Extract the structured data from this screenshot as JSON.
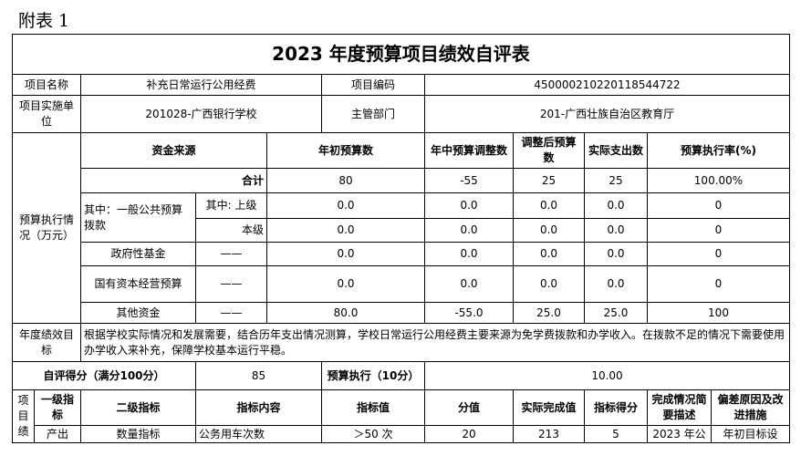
{
  "attachment_label": "附表 1",
  "title": "2023 年度预算项目绩效自评表",
  "info": {
    "name_label": "项目名称",
    "name_value": "补充日常运行公用经费",
    "code_label": "项目编码",
    "code_value": "450000210220118544722",
    "unit_label": "项目实施单位",
    "unit_value": "201028-广西银行学校",
    "dept_label": "主管部门",
    "dept_value": "201-广西壮族自治区教育厅"
  },
  "budget": {
    "section_label": "预算执行情况（万元）",
    "headers": [
      "资金来源",
      "年初预算数",
      "年中预算调整数",
      "调整后预算数",
      "实际支出数",
      "预算执行率(%)"
    ],
    "rows": [
      {
        "label": "合计",
        "sub": "",
        "values": [
          "80",
          "-55",
          "25",
          "25",
          "100.00%"
        ]
      },
      {
        "label": "其中：一般公共预算拨款",
        "sub": "其中: 上级",
        "values": [
          "0.0",
          "0.0",
          "0.0",
          "0.0",
          "0"
        ]
      },
      {
        "label": "",
        "sub": "本级",
        "values": [
          "0.0",
          "0.0",
          "0.0",
          "0.0",
          "0"
        ]
      },
      {
        "label": "政府性基金",
        "sub": "——",
        "values": [
          "0.0",
          "0.0",
          "0.0",
          "0.0",
          "0"
        ]
      },
      {
        "label": "国有资本经营预算",
        "sub": "——",
        "values": [
          "0.0",
          "0.0",
          "0.0",
          "0.0",
          "0"
        ]
      },
      {
        "label": "其他资金",
        "sub": "——",
        "values": [
          "80.0",
          "-55.0",
          "25.0",
          "25.0",
          "100"
        ]
      }
    ]
  },
  "goal": {
    "label": "年度绩效目标",
    "text": "根据学校实际情况和发展需要，结合历年支出情况测算，学校日常运行公用经费主要来源为免学费拨款和办学收入。在拨款不足的情况下需要使用办学收入来补充，保障学校基本运行平稳。"
  },
  "score": {
    "self_label": "自评得分（满分100分）",
    "self_value": "85",
    "exec_label": "预算执行（10分）",
    "exec_value": "10.00"
  },
  "indicators": {
    "section_label": "项目绩",
    "headers": [
      "一级指标",
      "二级指标",
      "指标内容",
      "指标值",
      "分值",
      "实际完成值",
      "指标得分",
      "完成情况简要描述",
      "偏差原因及改进措施"
    ],
    "rows": [
      [
        "产出",
        "数量指标",
        "公务用车次数",
        "＞50 次",
        "20",
        "213",
        "5",
        "2023 年公",
        "年初目标设"
      ]
    ]
  }
}
